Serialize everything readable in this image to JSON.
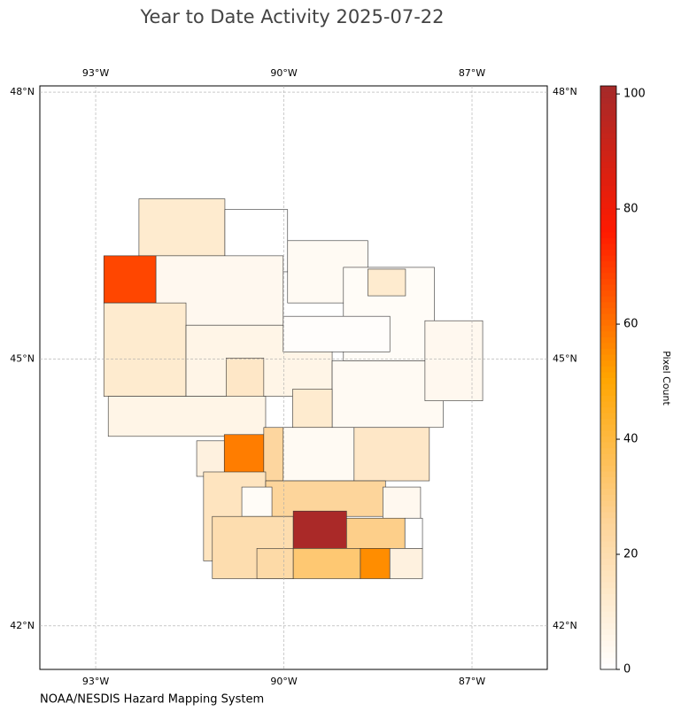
{
  "chart_data": {
    "type": "choropleth",
    "title": "Year to Date Activity 2025-07-22",
    "credit": "NOAA/NESDIS Hazard Mapping System",
    "xlim": [
      -93.89,
      -85.8
    ],
    "ylim": [
      41.51,
      48.07
    ],
    "xticks": [
      {
        "value": -93,
        "label": "93°W"
      },
      {
        "value": -90,
        "label": "90°W"
      },
      {
        "value": -87,
        "label": "87°W"
      }
    ],
    "yticks": [
      {
        "value": 48,
        "label": "48°N"
      },
      {
        "value": 45,
        "label": "45°N"
      },
      {
        "value": 42,
        "label": "42°N"
      }
    ],
    "grid": true,
    "colorbar": {
      "label": "Pixel Count",
      "lim": [
        0,
        101.4
      ],
      "ticks": [
        0,
        20,
        40,
        60,
        80,
        100
      ],
      "colors": [
        "#ffffff",
        "#fdd49a",
        "#ffa500",
        "#ff1a00",
        "#a52a2a"
      ]
    },
    "regions": [
      {
        "lon": [
          -92.31,
          -90.94
        ],
        "lat": [
          46.16,
          46.8
        ],
        "value": 12
      },
      {
        "lon": [
          -90.94,
          -89.94
        ],
        "lat": [
          45.98,
          46.68
        ],
        "value": 0
      },
      {
        "lon": [
          -89.94,
          -88.66
        ],
        "lat": [
          45.63,
          46.33
        ],
        "value": 3
      },
      {
        "lon": [
          -89.05,
          -87.6
        ],
        "lat": [
          44.98,
          46.03
        ],
        "value": 2
      },
      {
        "lon": [
          -88.66,
          -88.06
        ],
        "lat": [
          45.71,
          46.01
        ],
        "value": 12
      },
      {
        "lon": [
          -92.04,
          -90.01
        ],
        "lat": [
          45.38,
          46.16
        ],
        "value": 4
      },
      {
        "lon": [
          -92.87,
          -92.04
        ],
        "lat": [
          45.63,
          46.16
        ],
        "value": 68
      },
      {
        "lon": [
          -92.87,
          -91.56
        ],
        "lat": [
          44.58,
          45.63
        ],
        "value": 12
      },
      {
        "lon": [
          -91.56,
          -89.23
        ],
        "lat": [
          44.58,
          45.38
        ],
        "value": 6
      },
      {
        "lon": [
          -90.92,
          -90.32
        ],
        "lat": [
          44.43,
          45.01
        ],
        "value": 14
      },
      {
        "lon": [
          -90.01,
          -88.31
        ],
        "lat": [
          45.08,
          45.48
        ],
        "value": 1
      },
      {
        "lon": [
          -89.23,
          -87.46
        ],
        "lat": [
          44.23,
          44.98
        ],
        "value": 3
      },
      {
        "lon": [
          -89.86,
          -89.23
        ],
        "lat": [
          44.23,
          44.66
        ],
        "value": 12
      },
      {
        "lon": [
          -92.8,
          -90.29
        ],
        "lat": [
          44.13,
          44.58
        ],
        "value": 6
      },
      {
        "lon": [
          -87.75,
          -86.83
        ],
        "lat": [
          44.53,
          45.43
        ],
        "value": 4
      },
      {
        "lon": [
          -90.95,
          -90.32
        ],
        "lat": [
          43.72,
          44.15
        ],
        "value": 58
      },
      {
        "lon": [
          -91.39,
          -90.95
        ],
        "lat": [
          43.68,
          44.08
        ],
        "value": 8
      },
      {
        "lon": [
          -90.32,
          -89.86
        ],
        "lat": [
          43.63,
          44.23
        ],
        "value": 24
      },
      {
        "lon": [
          -90.01,
          -88.88
        ],
        "lat": [
          43.63,
          44.23
        ],
        "value": 3
      },
      {
        "lon": [
          -88.88,
          -87.68
        ],
        "lat": [
          43.63,
          44.23
        ],
        "value": 14
      },
      {
        "lon": [
          -91.28,
          -90.29
        ],
        "lat": [
          42.73,
          43.73
        ],
        "value": 16
      },
      {
        "lon": [
          -90.29,
          -88.38
        ],
        "lat": [
          43.23,
          43.63
        ],
        "value": 25
      },
      {
        "lon": [
          -90.67,
          -90.19
        ],
        "lat": [
          43.23,
          43.56
        ],
        "value": 2
      },
      {
        "lon": [
          -88.42,
          -87.82
        ],
        "lat": [
          43.18,
          43.56
        ],
        "value": 4
      },
      {
        "lon": [
          -91.14,
          -89.85
        ],
        "lat": [
          42.53,
          43.23
        ],
        "value": 20
      },
      {
        "lon": [
          -89.85,
          -89.0
        ],
        "lat": [
          42.87,
          43.29
        ],
        "value": 100
      },
      {
        "lon": [
          -89.0,
          -88.07
        ],
        "lat": [
          42.87,
          43.21
        ],
        "value": 28
      },
      {
        "lon": [
          -88.07,
          -87.79
        ],
        "lat": [
          42.87,
          43.21
        ],
        "value": 0
      },
      {
        "lon": [
          -90.43,
          -89.85
        ],
        "lat": [
          42.53,
          42.87
        ],
        "value": 22
      },
      {
        "lon": [
          -89.85,
          -88.78
        ],
        "lat": [
          42.53,
          42.87
        ],
        "value": 32
      },
      {
        "lon": [
          -88.78,
          -88.31
        ],
        "lat": [
          42.53,
          42.87
        ],
        "value": 55
      },
      {
        "lon": [
          -88.31,
          -87.79
        ],
        "lat": [
          42.53,
          42.87
        ],
        "value": 8
      }
    ]
  }
}
